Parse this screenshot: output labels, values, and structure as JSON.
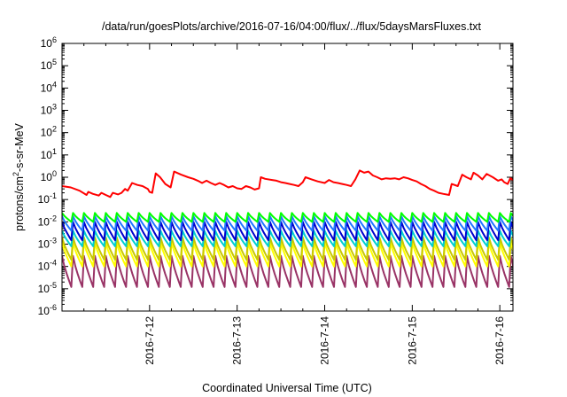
{
  "chart_data": {
    "type": "line",
    "title": "/data/run/goesPlots/archive/2016-07-16/04:00/flux/../flux/5daysMarsFluxes.txt",
    "xlabel": "Coordinated Universal Time (UTC)",
    "ylabel": {
      "prefix": "protons/cm",
      "superscript": "2",
      "suffix": "-s-sr-MeV"
    },
    "x_range_days": [
      0.0,
      5.15
    ],
    "xticks": [
      {
        "day": 1.0,
        "label": "2016-7-12"
      },
      {
        "day": 2.0,
        "label": "2016-7-13"
      },
      {
        "day": 3.0,
        "label": "2016-7-14"
      },
      {
        "day": 4.0,
        "label": "2016-7-15"
      },
      {
        "day": 5.0,
        "label": "2016-7-16"
      }
    ],
    "yscale": "log",
    "ylim_exponent": [
      -6,
      6
    ],
    "yticks": [
      {
        "exp": 6,
        "base": "10",
        "power": "6"
      },
      {
        "exp": 5,
        "base": "10",
        "power": "5"
      },
      {
        "exp": 4,
        "base": "10",
        "power": "4"
      },
      {
        "exp": 3,
        "base": "10",
        "power": "3"
      },
      {
        "exp": 2,
        "base": "10",
        "power": "2"
      },
      {
        "exp": 1,
        "base": "10",
        "power": "1"
      },
      {
        "exp": 0,
        "base": "10",
        "power": "0"
      },
      {
        "exp": -1,
        "base": "10",
        "power": "-1"
      },
      {
        "exp": -2,
        "base": "10",
        "power": "-2"
      },
      {
        "exp": -3,
        "base": "10",
        "power": "-3"
      },
      {
        "exp": -4,
        "base": "10",
        "power": "-4"
      },
      {
        "exp": -5,
        "base": "10",
        "power": "-5"
      },
      {
        "exp": -6,
        "base": "10",
        "power": "-6"
      }
    ],
    "grid": false,
    "legend": "none",
    "red_series": {
      "color": "#ff0000",
      "points": [
        [
          0.0,
          0.4
        ],
        [
          0.1,
          0.35
        ],
        [
          0.2,
          0.25
        ],
        [
          0.28,
          0.16
        ],
        [
          0.3,
          0.22
        ],
        [
          0.35,
          0.18
        ],
        [
          0.42,
          0.15
        ],
        [
          0.45,
          0.2
        ],
        [
          0.5,
          0.16
        ],
        [
          0.55,
          0.13
        ],
        [
          0.58,
          0.2
        ],
        [
          0.64,
          0.17
        ],
        [
          0.68,
          0.2
        ],
        [
          0.72,
          0.3
        ],
        [
          0.75,
          0.25
        ],
        [
          0.8,
          0.55
        ],
        [
          0.86,
          0.45
        ],
        [
          0.92,
          0.4
        ],
        [
          0.98,
          0.3
        ],
        [
          1.0,
          0.22
        ],
        [
          1.03,
          0.2
        ],
        [
          1.07,
          1.5
        ],
        [
          1.12,
          1.0
        ],
        [
          1.18,
          0.5
        ],
        [
          1.24,
          0.35
        ],
        [
          1.28,
          1.8
        ],
        [
          1.36,
          1.3
        ],
        [
          1.44,
          1.0
        ],
        [
          1.5,
          0.85
        ],
        [
          1.55,
          0.7
        ],
        [
          1.6,
          0.55
        ],
        [
          1.65,
          0.7
        ],
        [
          1.7,
          0.55
        ],
        [
          1.75,
          0.45
        ],
        [
          1.8,
          0.55
        ],
        [
          1.85,
          0.45
        ],
        [
          1.9,
          0.35
        ],
        [
          1.95,
          0.4
        ],
        [
          2.0,
          0.32
        ],
        [
          2.05,
          0.3
        ],
        [
          2.1,
          0.4
        ],
        [
          2.15,
          0.35
        ],
        [
          2.2,
          0.28
        ],
        [
          2.25,
          0.32
        ],
        [
          2.27,
          1.0
        ],
        [
          2.32,
          0.85
        ],
        [
          2.4,
          0.75
        ],
        [
          2.45,
          0.7
        ],
        [
          2.5,
          0.6
        ],
        [
          2.55,
          0.55
        ],
        [
          2.6,
          0.5
        ],
        [
          2.65,
          0.45
        ],
        [
          2.7,
          0.4
        ],
        [
          2.75,
          0.6
        ],
        [
          2.78,
          1.0
        ],
        [
          2.85,
          0.8
        ],
        [
          2.92,
          0.65
        ],
        [
          3.0,
          0.55
        ],
        [
          3.05,
          0.75
        ],
        [
          3.1,
          0.6
        ],
        [
          3.15,
          0.55
        ],
        [
          3.2,
          0.5
        ],
        [
          3.25,
          0.45
        ],
        [
          3.3,
          0.4
        ],
        [
          3.35,
          0.8
        ],
        [
          3.4,
          2.0
        ],
        [
          3.45,
          1.6
        ],
        [
          3.5,
          1.8
        ],
        [
          3.55,
          1.2
        ],
        [
          3.6,
          1.0
        ],
        [
          3.65,
          0.8
        ],
        [
          3.7,
          0.9
        ],
        [
          3.75,
          0.85
        ],
        [
          3.8,
          0.9
        ],
        [
          3.85,
          0.8
        ],
        [
          3.9,
          1.0
        ],
        [
          3.95,
          0.9
        ],
        [
          4.0,
          0.75
        ],
        [
          4.05,
          0.65
        ],
        [
          4.1,
          0.5
        ],
        [
          4.15,
          0.4
        ],
        [
          4.2,
          0.3
        ],
        [
          4.25,
          0.25
        ],
        [
          4.3,
          0.2
        ],
        [
          4.35,
          0.18
        ],
        [
          4.42,
          0.16
        ],
        [
          4.45,
          0.5
        ],
        [
          4.52,
          0.4
        ],
        [
          4.57,
          1.3
        ],
        [
          4.62,
          1.0
        ],
        [
          4.67,
          0.8
        ],
        [
          4.7,
          1.6
        ],
        [
          4.75,
          1.2
        ],
        [
          4.8,
          0.8
        ],
        [
          4.85,
          1.4
        ],
        [
          4.92,
          1.0
        ],
        [
          4.98,
          0.7
        ],
        [
          5.02,
          0.8
        ],
        [
          5.05,
          0.6
        ],
        [
          5.09,
          0.5
        ],
        [
          5.12,
          0.9
        ],
        [
          5.15,
          0.75
        ]
      ]
    },
    "sawtooth_series": {
      "period_days": 0.125,
      "start_day": 0.0,
      "end_day": 5.15,
      "series": [
        {
          "color": "#00ff00",
          "peak": 0.025,
          "trough": 0.01
        },
        {
          "color": "#1f78ff",
          "peak": 0.018,
          "trough": 0.004
        },
        {
          "color": "#0000cd",
          "peak": 0.01,
          "trough": 0.0015
        },
        {
          "color": "#00d0d0",
          "peak": 0.004,
          "trough": 0.0008
        },
        {
          "color": "#c8c800",
          "peak": 0.002,
          "trough": 0.0002
        },
        {
          "color": "#ffff00",
          "peak": 0.0012,
          "trough": 0.0001
        },
        {
          "color": "#993366",
          "peak": 0.0003,
          "trough": 1.2e-05
        }
      ]
    }
  }
}
